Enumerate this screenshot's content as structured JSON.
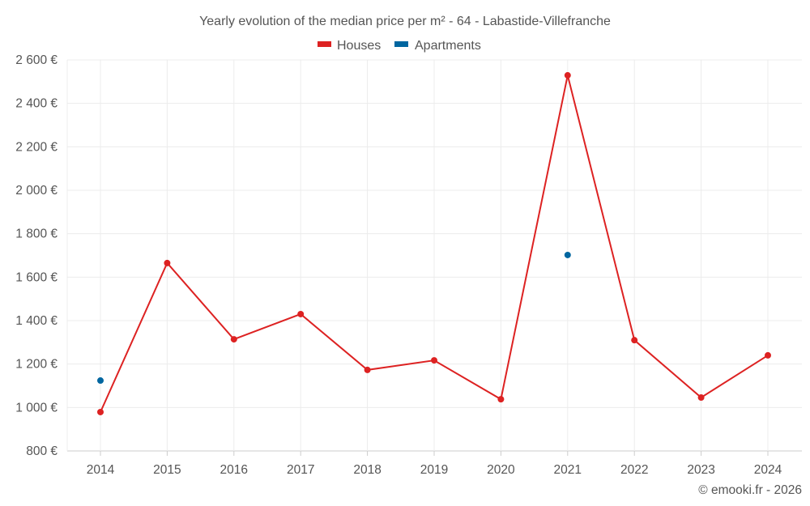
{
  "chart_data": {
    "type": "line",
    "title": "Yearly evolution of the median price per m² - 64 - Labastide-Villefranche",
    "xlabel": "",
    "ylabel": "",
    "x": [
      "2014",
      "2015",
      "2016",
      "2017",
      "2018",
      "2019",
      "2020",
      "2021",
      "2022",
      "2023",
      "2024"
    ],
    "ylim": [
      800,
      2600
    ],
    "yticks": [
      800,
      1000,
      1200,
      1400,
      1600,
      1800,
      2000,
      2200,
      2400,
      2600
    ],
    "ytick_labels": [
      "800 €",
      "1 000 €",
      "1 200 €",
      "1 400 €",
      "1 600 €",
      "1 800 €",
      "2 000 €",
      "2 200 €",
      "2 400 €",
      "2 600 €"
    ],
    "grid": true,
    "legend_position": "top-center",
    "series": [
      {
        "name": "Houses",
        "color": "#dd2222",
        "values": [
          979,
          1665,
          1314,
          1430,
          1173,
          1217,
          1038,
          2529,
          1310,
          1046,
          1240
        ],
        "line": true
      },
      {
        "name": "Apartments",
        "color": "#0066a0",
        "values": [
          1124,
          null,
          null,
          null,
          null,
          null,
          null,
          1702,
          null,
          null,
          null
        ],
        "line": false
      }
    ],
    "credit": "© emooki.fr - 2026"
  }
}
